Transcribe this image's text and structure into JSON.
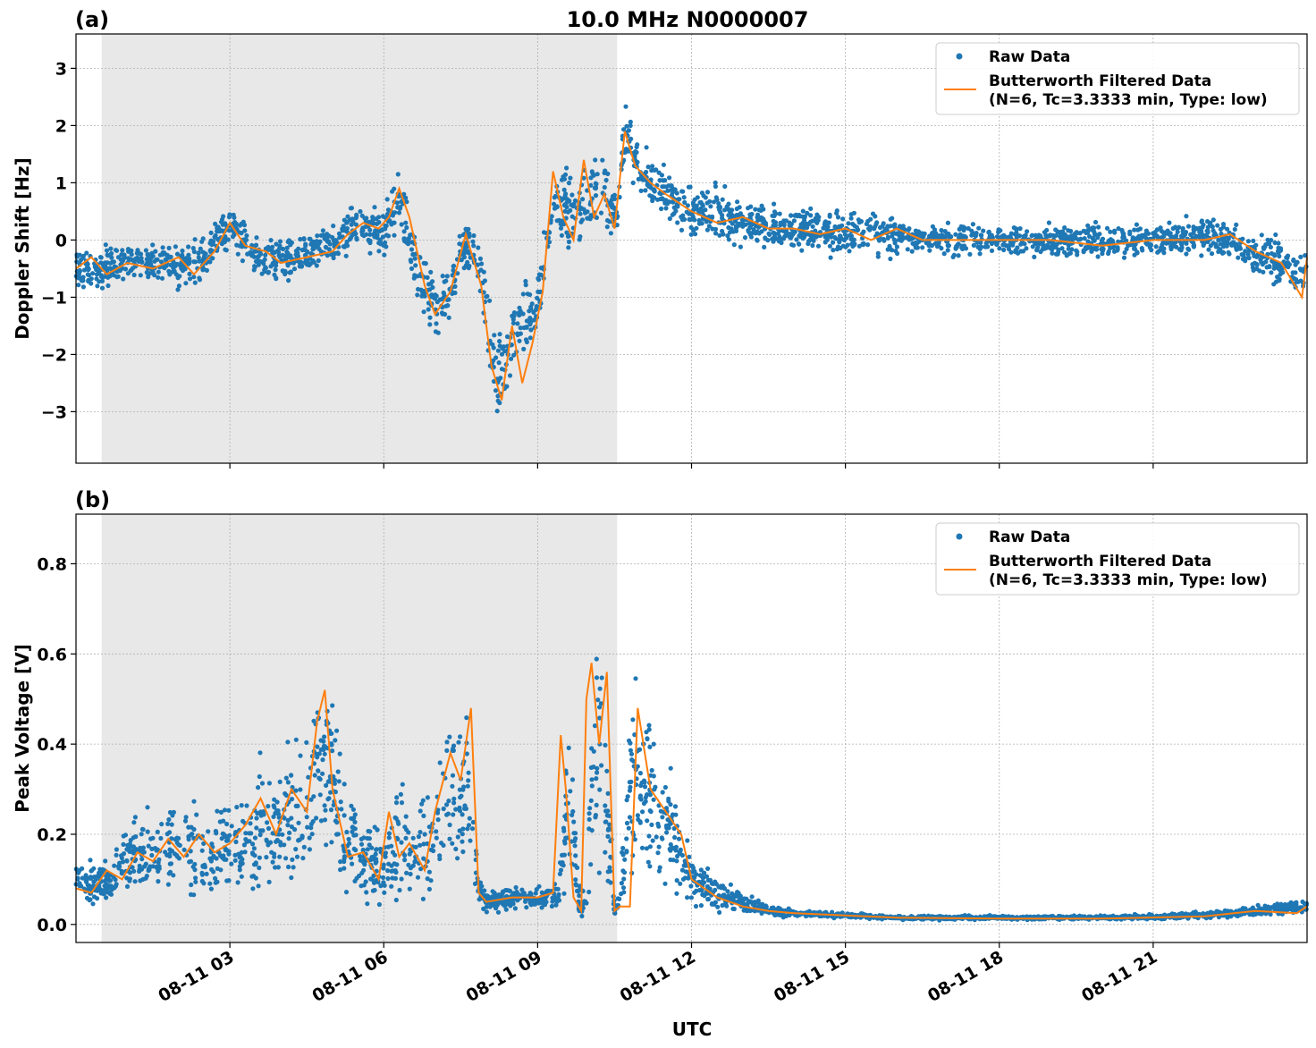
{
  "figure": {
    "title": "10.0 MHz N0000007",
    "xlabel": "UTC"
  },
  "colors": {
    "raw": "#1f77b4",
    "filtered": "#ff7f0e",
    "shade": "#e8e8e8",
    "grid": "#b0b0b0"
  },
  "legend": {
    "raw_label": "Raw Data",
    "filtered_label_line1": "Butterworth Filtered Data",
    "filtered_label_line2": "(N=6, Tc=3.3333 min, Type: low)",
    "placement": "top-right"
  },
  "chart_data": [
    {
      "type": "scatter",
      "panel_label": "(a)",
      "ylabel": "Doppler Shift [Hz]",
      "xlim_hours": [
        0,
        24
      ],
      "ylim": [
        -3.9,
        3.6
      ],
      "yticks": [
        -3,
        -2,
        -1,
        0,
        1,
        2,
        3
      ],
      "ytick_labels": [
        "−3",
        "−2",
        "−1",
        "0",
        "1",
        "2",
        "3"
      ],
      "xticks_hours": [
        3,
        6,
        9,
        12,
        15,
        18,
        21
      ],
      "grid": true,
      "shaded_region_hours": [
        0.5,
        10.55
      ],
      "series": [
        {
          "name": "Raw Data",
          "kind": "points",
          "x_hours": [
            0,
            0.5,
            1,
            1.5,
            2,
            2.5,
            3,
            3.5,
            4,
            4.5,
            5,
            5.5,
            6,
            6.3,
            6.6,
            7,
            7.3,
            7.6,
            7.9,
            8.2,
            8.6,
            9,
            9.3,
            9.6,
            9.9,
            10.2,
            10.55,
            10.7,
            11,
            11.5,
            12,
            12.5,
            13,
            14,
            15,
            16,
            16.5,
            17,
            18,
            19,
            20,
            21,
            22,
            22.5,
            23,
            23.5,
            24
          ],
          "center": [
            -0.5,
            -0.5,
            -0.4,
            -0.4,
            -0.5,
            -0.3,
            0.3,
            -0.3,
            -0.4,
            -0.2,
            -0.1,
            0.3,
            0.1,
            0.6,
            -0.4,
            -1.2,
            -0.9,
            0.0,
            -0.6,
            -2.6,
            -1.5,
            -1.2,
            0.8,
            0.5,
            0.5,
            1.0,
            0.4,
            1.9,
            1.2,
            0.8,
            0.4,
            0.5,
            0.3,
            0.2,
            0.1,
            0.1,
            0.0,
            0.0,
            0.0,
            0.0,
            0.0,
            0.0,
            0.1,
            0.0,
            -0.3,
            -0.4,
            -0.6
          ],
          "spread": [
            0.5,
            0.5,
            0.5,
            0.5,
            0.5,
            0.5,
            0.5,
            0.5,
            0.5,
            0.5,
            0.5,
            0.5,
            0.6,
            0.8,
            0.7,
            0.7,
            0.6,
            0.6,
            0.8,
            0.9,
            0.9,
            0.7,
            0.9,
            1.0,
            1.0,
            0.8,
            0.6,
            0.7,
            0.6,
            0.6,
            0.6,
            0.6,
            0.5,
            0.5,
            0.5,
            0.5,
            0.3,
            0.4,
            0.3,
            0.4,
            0.4,
            0.3,
            0.5,
            0.5,
            0.5,
            0.6,
            0.5
          ]
        },
        {
          "name": "Butterworth Filtered Data (N=6, Tc=3.3333 min, Type: low)",
          "kind": "line",
          "x_hours": [
            0,
            0.3,
            0.6,
            1,
            1.5,
            2,
            2.3,
            2.7,
            3,
            3.3,
            3.7,
            4,
            4.5,
            5,
            5.3,
            5.6,
            5.9,
            6.1,
            6.3,
            6.5,
            6.8,
            7.0,
            7.3,
            7.6,
            7.9,
            8.1,
            8.3,
            8.5,
            8.7,
            8.9,
            9.1,
            9.3,
            9.5,
            9.7,
            9.9,
            10.1,
            10.3,
            10.5,
            10.7,
            10.9,
            11.2,
            11.5,
            12,
            12.5,
            13,
            13.5,
            14,
            14.5,
            15,
            15.5,
            16,
            16.5,
            17,
            18,
            19,
            20,
            21,
            22,
            22.5,
            23,
            23.5,
            23.9,
            24
          ],
          "values": [
            -0.5,
            -0.3,
            -0.6,
            -0.4,
            -0.5,
            -0.3,
            -0.6,
            -0.2,
            0.3,
            -0.1,
            -0.2,
            -0.4,
            -0.3,
            -0.2,
            0.1,
            0.3,
            0.2,
            0.4,
            0.9,
            0.4,
            -0.8,
            -1.3,
            -0.9,
            0.1,
            -0.8,
            -2.2,
            -2.8,
            -1.5,
            -2.5,
            -1.8,
            -0.9,
            1.2,
            0.4,
            0.0,
            1.4,
            0.4,
            0.8,
            0.2,
            1.9,
            1.3,
            1.0,
            0.8,
            0.5,
            0.3,
            0.4,
            0.2,
            0.2,
            0.1,
            0.2,
            0.0,
            0.2,
            0.0,
            0.0,
            0.0,
            0.0,
            -0.1,
            0.0,
            0.0,
            0.1,
            -0.2,
            -0.4,
            -1.0,
            -0.3
          ]
        }
      ]
    },
    {
      "type": "scatter",
      "panel_label": "(b)",
      "ylabel": "Peak Voltage [V]",
      "xlabel": "UTC",
      "xlim_hours": [
        0,
        24
      ],
      "ylim": [
        -0.04,
        0.91
      ],
      "yticks": [
        0.0,
        0.2,
        0.4,
        0.6,
        0.8
      ],
      "ytick_labels": [
        "0.0",
        "0.2",
        "0.4",
        "0.6",
        "0.8"
      ],
      "xticks_hours": [
        3,
        6,
        9,
        12,
        15,
        18,
        21
      ],
      "xtick_labels": [
        "08-11 03",
        "08-11 06",
        "08-11 09",
        "08-11 12",
        "08-11 15",
        "08-11 18",
        "08-11 21"
      ],
      "grid": true,
      "shaded_region_hours": [
        0.5,
        10.55
      ],
      "series": [
        {
          "name": "Raw Data",
          "kind": "points",
          "x_hours": [
            0,
            0.5,
            1,
            1.5,
            2,
            2.5,
            3,
            3.5,
            4,
            4.5,
            4.8,
            5.1,
            5.5,
            6,
            6.3,
            6.6,
            7,
            7.3,
            7.6,
            7.85,
            8,
            8.5,
            9,
            9.4,
            9.6,
            9.8,
            9.95,
            10.1,
            10.3,
            10.5,
            10.6,
            10.8,
            11,
            11.3,
            11.6,
            12,
            12.5,
            13,
            13.5,
            14,
            15,
            16,
            18,
            20,
            22,
            23,
            24
          ],
          "center": [
            0.1,
            0.09,
            0.14,
            0.16,
            0.18,
            0.15,
            0.16,
            0.2,
            0.22,
            0.25,
            0.4,
            0.25,
            0.15,
            0.12,
            0.18,
            0.15,
            0.2,
            0.3,
            0.32,
            0.08,
            0.05,
            0.06,
            0.06,
            0.07,
            0.3,
            0.06,
            0.05,
            0.4,
            0.35,
            0.03,
            0.05,
            0.3,
            0.35,
            0.25,
            0.2,
            0.1,
            0.07,
            0.05,
            0.03,
            0.025,
            0.02,
            0.015,
            0.015,
            0.015,
            0.02,
            0.03,
            0.04
          ],
          "spread": [
            0.05,
            0.06,
            0.1,
            0.12,
            0.14,
            0.13,
            0.15,
            0.18,
            0.2,
            0.22,
            0.3,
            0.22,
            0.16,
            0.1,
            0.18,
            0.14,
            0.18,
            0.25,
            0.25,
            0.04,
            0.03,
            0.03,
            0.03,
            0.04,
            0.3,
            0.05,
            0.03,
            0.35,
            0.3,
            0.02,
            0.03,
            0.25,
            0.3,
            0.2,
            0.15,
            0.07,
            0.05,
            0.03,
            0.015,
            0.01,
            0.008,
            0.006,
            0.006,
            0.006,
            0.01,
            0.015,
            0.02
          ]
        },
        {
          "name": "Butterworth Filtered Data (N=6, Tc=3.3333 min, Type: low)",
          "kind": "line",
          "x_hours": [
            0,
            0.3,
            0.6,
            0.9,
            1.2,
            1.5,
            1.8,
            2.1,
            2.4,
            2.7,
            3.0,
            3.3,
            3.6,
            3.9,
            4.2,
            4.5,
            4.7,
            4.85,
            5.0,
            5.3,
            5.6,
            5.9,
            6.1,
            6.3,
            6.5,
            6.8,
            7.0,
            7.3,
            7.5,
            7.7,
            7.85,
            8.0,
            8.5,
            9.0,
            9.3,
            9.45,
            9.55,
            9.7,
            9.85,
            9.95,
            10.05,
            10.2,
            10.35,
            10.5,
            10.6,
            10.8,
            10.95,
            11.2,
            11.5,
            11.8,
            12.0,
            12.5,
            13.0,
            13.5,
            14,
            15,
            16,
            18,
            20,
            22,
            23,
            23.8,
            24
          ],
          "values": [
            0.08,
            0.07,
            0.12,
            0.1,
            0.16,
            0.14,
            0.19,
            0.15,
            0.2,
            0.16,
            0.18,
            0.22,
            0.28,
            0.2,
            0.3,
            0.25,
            0.45,
            0.52,
            0.3,
            0.15,
            0.16,
            0.1,
            0.25,
            0.15,
            0.18,
            0.12,
            0.25,
            0.38,
            0.32,
            0.48,
            0.07,
            0.05,
            0.06,
            0.06,
            0.07,
            0.42,
            0.3,
            0.06,
            0.03,
            0.5,
            0.58,
            0.4,
            0.56,
            0.03,
            0.04,
            0.04,
            0.48,
            0.3,
            0.25,
            0.2,
            0.1,
            0.06,
            0.04,
            0.03,
            0.025,
            0.02,
            0.015,
            0.013,
            0.013,
            0.018,
            0.03,
            0.025,
            0.04
          ]
        }
      ]
    }
  ]
}
